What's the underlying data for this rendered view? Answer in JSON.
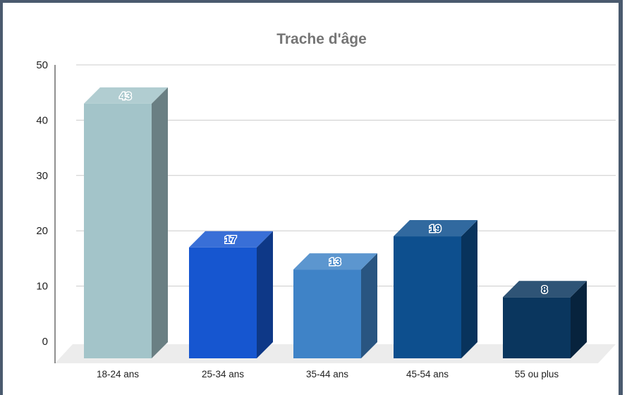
{
  "chart_data": {
    "type": "bar",
    "title": "Trache d'âge",
    "xlabel": "",
    "ylabel": "",
    "categories": [
      "18-24 ans",
      "25-34 ans",
      "35-44 ans",
      "45-54 ans",
      "55 ou plus"
    ],
    "values": [
      43,
      17,
      13,
      19,
      8
    ],
    "ylim": [
      0,
      50
    ],
    "yticks": [
      0,
      10,
      20,
      30,
      40,
      50
    ],
    "grid": true,
    "legend": "none",
    "style": "3d",
    "colors": [
      "#a3c4c9",
      "#1656d0",
      "#3f83c7",
      "#0d4f8e",
      "#0a365e"
    ],
    "label_colors": [
      "#a3c4c9",
      "#1656d0",
      "#3f83c7",
      "#0d4f8e",
      "#0a365e"
    ]
  }
}
